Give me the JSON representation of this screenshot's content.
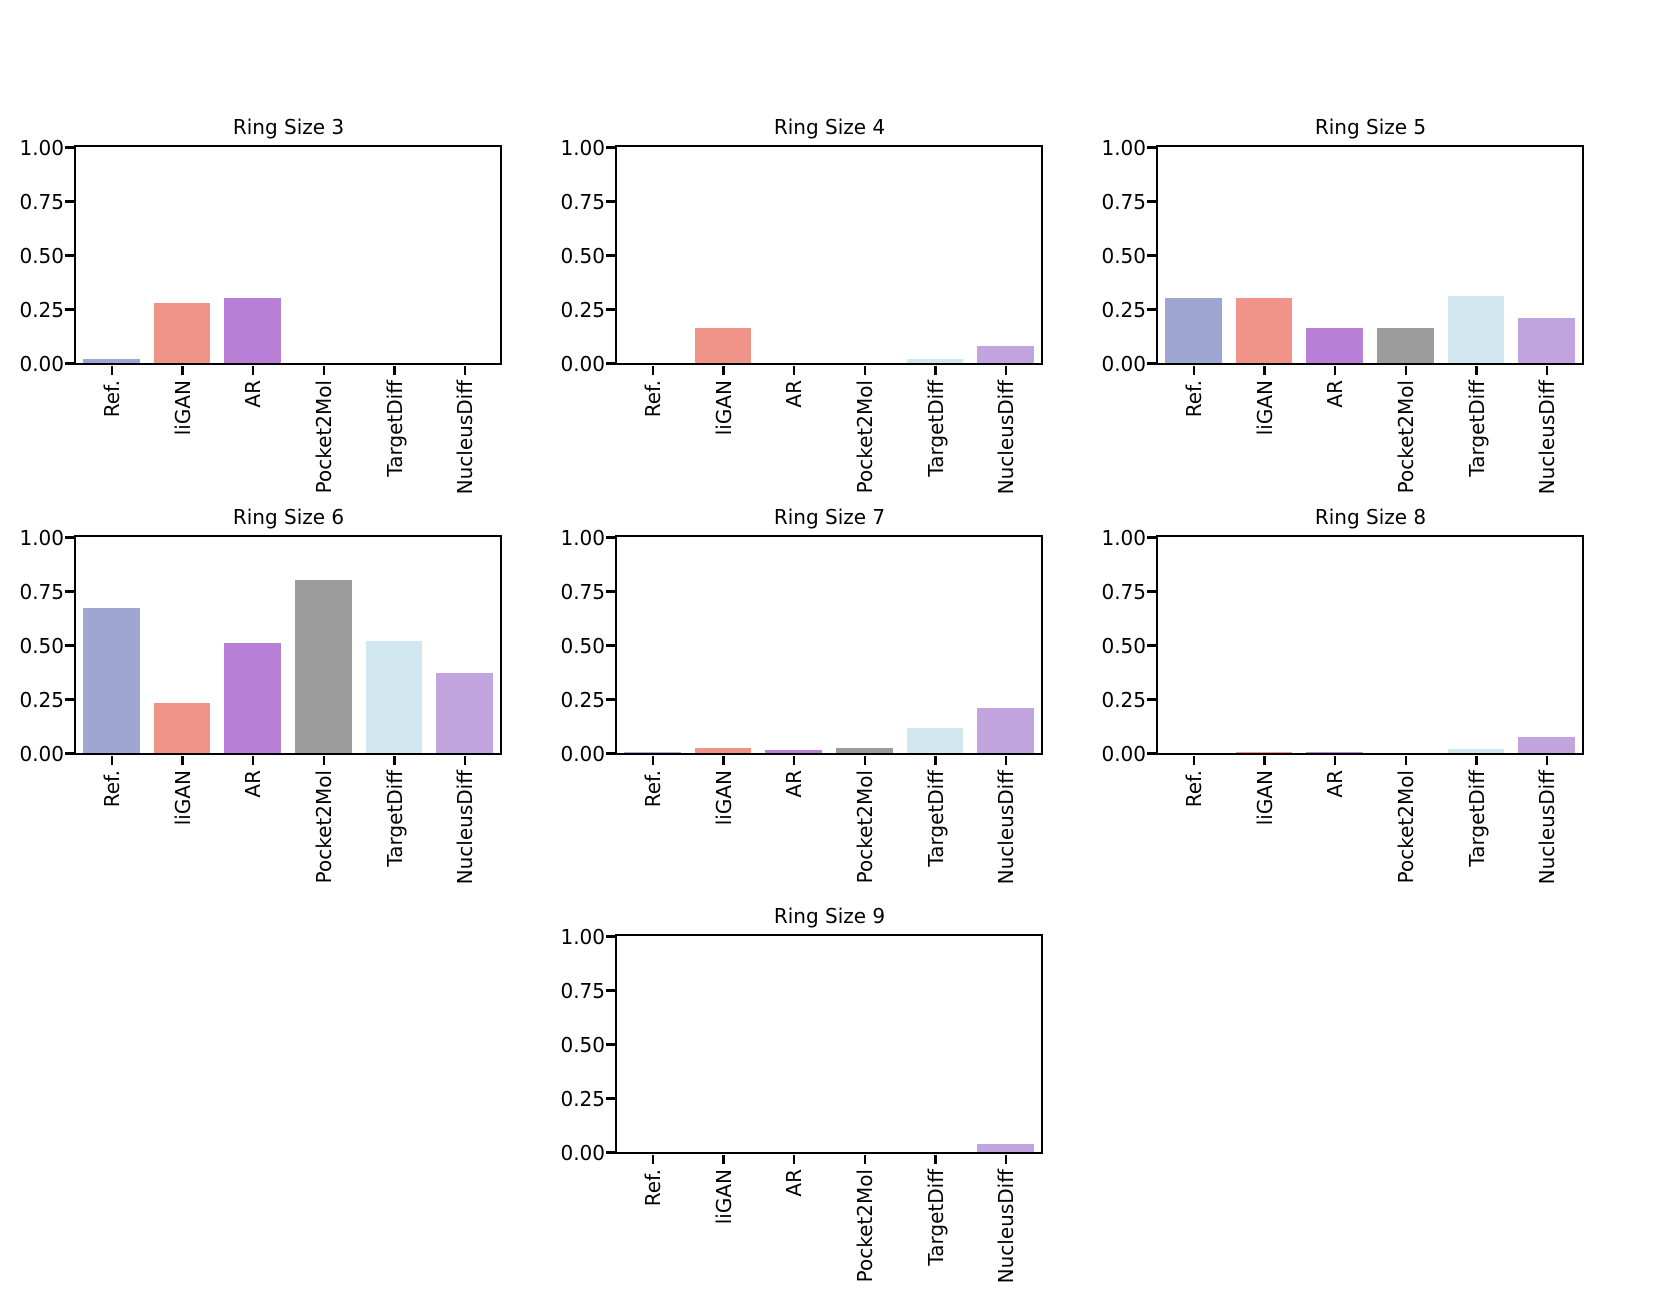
{
  "figure": {
    "background": "#ffffff",
    "text_color": "#000000"
  },
  "chart_data": [
    {
      "type": "bar",
      "title": "Ring Size 3",
      "categories": [
        "Ref.",
        "liGAN",
        "AR",
        "Pocket2Mol",
        "TargetDiff",
        "NucleusDiff"
      ],
      "values": [
        0.02,
        0.28,
        0.3,
        0.0,
        0.0,
        0.0
      ],
      "colors": [
        "#a0a6d2",
        "#f0948a",
        "#b780d6",
        "#9c9c9c",
        "#d1e8f0",
        "#c1a3dd"
      ],
      "xlabel": "",
      "ylabel": "",
      "ylim": [
        0,
        1
      ],
      "ytick_labels": [
        "0.00",
        "0.25",
        "0.50",
        "0.75",
        "1.00"
      ],
      "grid": false,
      "legend": "none"
    },
    {
      "type": "bar",
      "title": "Ring Size 4",
      "categories": [
        "Ref.",
        "liGAN",
        "AR",
        "Pocket2Mol",
        "TargetDiff",
        "NucleusDiff"
      ],
      "values": [
        0.0,
        0.16,
        0.0,
        0.0,
        0.02,
        0.08
      ],
      "colors": [
        "#a0a6d2",
        "#f0948a",
        "#b780d6",
        "#9c9c9c",
        "#d1e8f0",
        "#c1a3dd"
      ],
      "xlabel": "",
      "ylabel": "",
      "ylim": [
        0,
        1
      ],
      "ytick_labels": [
        "0.00",
        "0.25",
        "0.50",
        "0.75",
        "1.00"
      ],
      "grid": false,
      "legend": "none"
    },
    {
      "type": "bar",
      "title": "Ring Size 5",
      "categories": [
        "Ref.",
        "liGAN",
        "AR",
        "Pocket2Mol",
        "TargetDiff",
        "NucleusDiff"
      ],
      "values": [
        0.3,
        0.3,
        0.16,
        0.16,
        0.31,
        0.21
      ],
      "colors": [
        "#a0a6d2",
        "#f0948a",
        "#b780d6",
        "#9c9c9c",
        "#d1e8f0",
        "#c1a3dd"
      ],
      "xlabel": "",
      "ylabel": "",
      "ylim": [
        0,
        1
      ],
      "ytick_labels": [
        "0.00",
        "0.25",
        "0.50",
        "0.75",
        "1.00"
      ],
      "grid": false,
      "legend": "none"
    },
    {
      "type": "bar",
      "title": "Ring Size 6",
      "categories": [
        "Ref.",
        "liGAN",
        "AR",
        "Pocket2Mol",
        "TargetDiff",
        "NucleusDiff"
      ],
      "values": [
        0.67,
        0.23,
        0.51,
        0.8,
        0.52,
        0.37
      ],
      "colors": [
        "#a0a6d2",
        "#f0948a",
        "#b780d6",
        "#9c9c9c",
        "#d1e8f0",
        "#c1a3dd"
      ],
      "xlabel": "",
      "ylabel": "",
      "ylim": [
        0,
        1
      ],
      "ytick_labels": [
        "0.00",
        "0.25",
        "0.50",
        "0.75",
        "1.00"
      ],
      "grid": false,
      "legend": "none"
    },
    {
      "type": "bar",
      "title": "Ring Size 7",
      "categories": [
        "Ref.",
        "liGAN",
        "AR",
        "Pocket2Mol",
        "TargetDiff",
        "NucleusDiff"
      ],
      "values": [
        0.005,
        0.025,
        0.015,
        0.025,
        0.115,
        0.21
      ],
      "colors": [
        "#a0a6d2",
        "#f0948a",
        "#b780d6",
        "#9c9c9c",
        "#d1e8f0",
        "#c1a3dd"
      ],
      "xlabel": "",
      "ylabel": "",
      "ylim": [
        0,
        1
      ],
      "ytick_labels": [
        "0.00",
        "0.25",
        "0.50",
        "0.75",
        "1.00"
      ],
      "grid": false,
      "legend": "none"
    },
    {
      "type": "bar",
      "title": "Ring Size 8",
      "categories": [
        "Ref.",
        "liGAN",
        "AR",
        "Pocket2Mol",
        "TargetDiff",
        "NucleusDiff"
      ],
      "values": [
        0.0,
        0.005,
        0.004,
        0.0,
        0.02,
        0.075
      ],
      "colors": [
        "#a0a6d2",
        "#f0948a",
        "#b780d6",
        "#9c9c9c",
        "#d1e8f0",
        "#c1a3dd"
      ],
      "xlabel": "",
      "ylabel": "",
      "ylim": [
        0,
        1
      ],
      "ytick_labels": [
        "0.00",
        "0.25",
        "0.50",
        "0.75",
        "1.00"
      ],
      "grid": false,
      "legend": "none"
    },
    {
      "type": "bar",
      "title": "Ring Size 9",
      "categories": [
        "Ref.",
        "liGAN",
        "AR",
        "Pocket2Mol",
        "TargetDiff",
        "NucleusDiff"
      ],
      "values": [
        0.0,
        0.0,
        0.0,
        0.0,
        0.0,
        0.035
      ],
      "colors": [
        "#a0a6d2",
        "#f0948a",
        "#b780d6",
        "#9c9c9c",
        "#d1e8f0",
        "#c1a3dd"
      ],
      "xlabel": "",
      "ylabel": "",
      "ylim": [
        0,
        1
      ],
      "ytick_labels": [
        "0.00",
        "0.25",
        "0.50",
        "0.75",
        "1.00"
      ],
      "grid": false,
      "legend": "none"
    }
  ]
}
